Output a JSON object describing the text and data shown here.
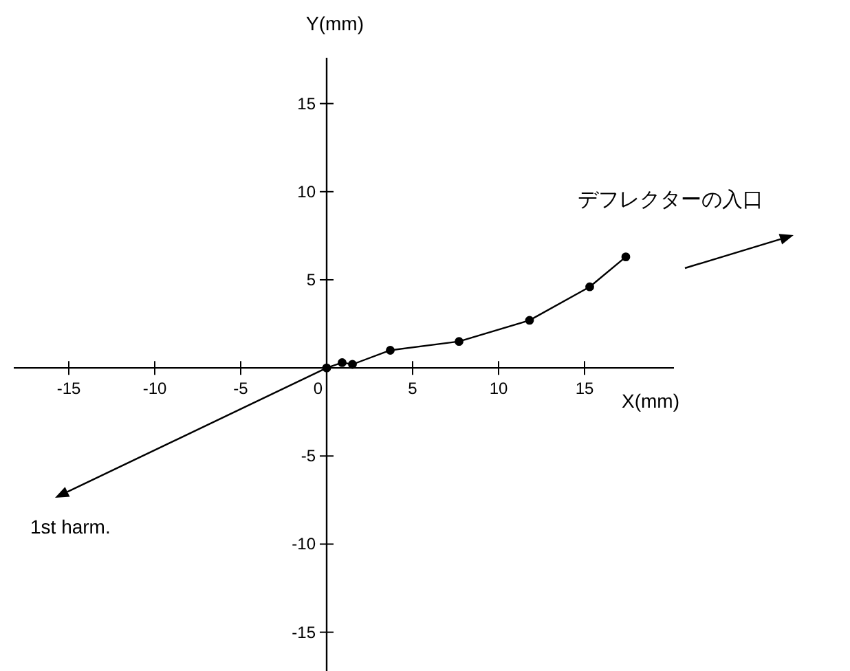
{
  "chart_data": {
    "type": "line",
    "xlabel": "X(mm)",
    "ylabel": "Y(mm)",
    "x": [
      0,
      0.9,
      1.5,
      3.7,
      7.7,
      11.8,
      15.3,
      17.4
    ],
    "values": [
      0,
      0.3,
      0.2,
      1.0,
      1.5,
      2.7,
      4.6,
      6.3
    ],
    "color": "#000000",
    "marker": "circle",
    "xlim": [
      -18.2,
      20.2
    ],
    "ylim": [
      -17.2,
      17.6
    ],
    "xticks": [
      -15,
      -10,
      -5,
      0,
      5,
      10,
      15
    ],
    "yticks": [
      -15,
      -10,
      -5,
      5,
      10,
      15
    ],
    "grid": false,
    "legend": false,
    "annotations": [
      "1st harm.",
      "デフレクターの入口"
    ]
  }
}
